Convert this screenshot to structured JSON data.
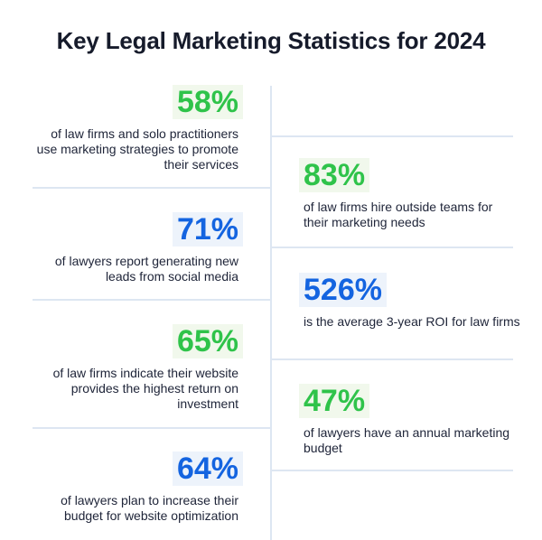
{
  "title": "Key Legal Marketing Statistics for 2024",
  "colors": {
    "green": "#2fc34a",
    "blue": "#1464e0",
    "divider": "#dde6f2"
  },
  "stats": [
    {
      "value": "58%",
      "text": "of law firms and solo practitioners use marketing strategies to promote their services"
    },
    {
      "value": "83%",
      "text": "of law firms hire outside teams for their marketing needs"
    },
    {
      "value": "71%",
      "text": "of lawyers report generating new leads from social media"
    },
    {
      "value": "526%",
      "text": "is the average 3-year ROI for law firms"
    },
    {
      "value": "65%",
      "text": "of law firms indicate their website provides the highest return on investment"
    },
    {
      "value": "47%",
      "text": "of lawyers have an annual marketing budget"
    },
    {
      "value": "64%",
      "text": "of lawyers plan to increase their budget for website optimization"
    }
  ]
}
